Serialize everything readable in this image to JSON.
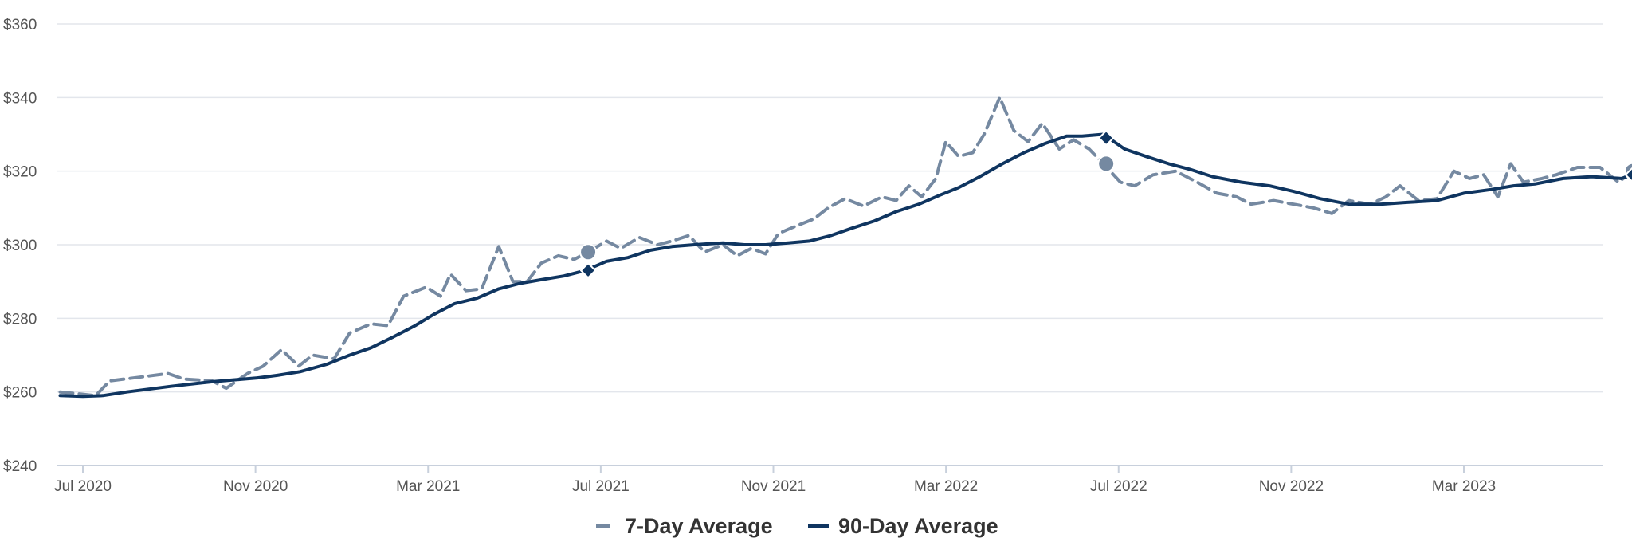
{
  "chart_data": {
    "type": "line",
    "ylim": [
      240,
      360
    ],
    "y_ticks": [
      "$240",
      "$260",
      "$280",
      "$300",
      "$320",
      "$340",
      "$360"
    ],
    "x_ticks": [
      "Jul 2020",
      "Nov 2020",
      "Mar 2021",
      "Jul 2021",
      "Nov 2021",
      "Mar 2022",
      "Jul 2022",
      "Nov 2022",
      "Mar 2023"
    ],
    "grid": "horizontal",
    "legend_position": "bottom-center",
    "colors": {
      "seven_day": "#7589a1",
      "ninety_day": "#0f3560",
      "grid": "#e3e6ec",
      "axis": "#c8d0dc"
    },
    "series": [
      {
        "name": "7-Day Average",
        "style": "dashed",
        "points": [
          [
            "2020-06-15",
            260
          ],
          [
            "2020-07-10",
            259
          ],
          [
            "2020-07-20",
            263
          ],
          [
            "2020-08-10",
            264
          ],
          [
            "2020-08-30",
            265
          ],
          [
            "2020-09-10",
            263.5
          ],
          [
            "2020-09-30",
            263
          ],
          [
            "2020-10-10",
            261
          ],
          [
            "2020-10-25",
            265
          ],
          [
            "2020-11-05",
            267
          ],
          [
            "2020-11-18",
            271.5
          ],
          [
            "2020-11-30",
            267
          ],
          [
            "2020-12-10",
            270
          ],
          [
            "2020-12-25",
            269
          ],
          [
            "2021-01-05",
            276
          ],
          [
            "2021-01-20",
            278.5
          ],
          [
            "2021-02-01",
            278
          ],
          [
            "2021-02-12",
            286
          ],
          [
            "2021-02-28",
            288.5
          ],
          [
            "2021-03-10",
            286
          ],
          [
            "2021-03-17",
            292
          ],
          [
            "2021-03-28",
            287.5
          ],
          [
            "2021-04-08",
            288
          ],
          [
            "2021-04-20",
            299.5
          ],
          [
            "2021-04-30",
            290
          ],
          [
            "2021-05-10",
            290
          ],
          [
            "2021-05-20",
            295
          ],
          [
            "2021-06-01",
            297
          ],
          [
            "2021-06-12",
            296
          ],
          [
            "2021-06-22",
            298
          ],
          [
            "2021-07-05",
            301
          ],
          [
            "2021-07-15",
            299
          ],
          [
            "2021-07-28",
            302
          ],
          [
            "2021-08-10",
            300
          ],
          [
            "2021-08-20",
            301
          ],
          [
            "2021-09-01",
            302.5
          ],
          [
            "2021-09-12",
            298
          ],
          [
            "2021-09-25",
            300
          ],
          [
            "2021-10-05",
            297
          ],
          [
            "2021-10-15",
            299
          ],
          [
            "2021-10-25",
            297.5
          ],
          [
            "2021-11-03",
            303
          ],
          [
            "2021-11-15",
            305
          ],
          [
            "2021-11-28",
            307
          ],
          [
            "2021-12-08",
            310
          ],
          [
            "2021-12-20",
            312.5
          ],
          [
            "2022-01-02",
            310.5
          ],
          [
            "2022-01-15",
            313
          ],
          [
            "2022-01-25",
            312
          ],
          [
            "2022-02-03",
            316
          ],
          [
            "2022-02-12",
            313
          ],
          [
            "2022-02-22",
            318
          ],
          [
            "2022-03-01",
            328
          ],
          [
            "2022-03-10",
            324
          ],
          [
            "2022-03-20",
            325
          ],
          [
            "2022-03-28",
            330
          ],
          [
            "2022-04-08",
            340
          ],
          [
            "2022-04-18",
            331
          ],
          [
            "2022-04-28",
            328
          ],
          [
            "2022-05-08",
            333
          ],
          [
            "2022-05-20",
            326
          ],
          [
            "2022-05-30",
            328.5
          ],
          [
            "2022-06-10",
            326
          ],
          [
            "2022-06-20",
            322
          ],
          [
            "2022-07-02",
            317
          ],
          [
            "2022-07-12",
            316
          ],
          [
            "2022-07-25",
            319
          ],
          [
            "2022-08-10",
            320
          ],
          [
            "2022-08-25",
            317
          ],
          [
            "2022-09-08",
            314
          ],
          [
            "2022-09-22",
            313
          ],
          [
            "2022-10-02",
            311
          ],
          [
            "2022-10-18",
            312
          ],
          [
            "2022-11-01",
            311
          ],
          [
            "2022-11-15",
            310
          ],
          [
            "2022-11-28",
            308.5
          ],
          [
            "2022-12-10",
            312
          ],
          [
            "2022-12-25",
            311
          ],
          [
            "2023-01-05",
            313
          ],
          [
            "2023-01-15",
            316
          ],
          [
            "2023-01-28",
            312
          ],
          [
            "2023-02-10",
            312.5
          ],
          [
            "2023-02-22",
            320
          ],
          [
            "2023-03-05",
            318
          ],
          [
            "2023-03-15",
            319
          ],
          [
            "2023-03-25",
            313
          ],
          [
            "2023-04-03",
            322
          ],
          [
            "2023-04-12",
            317
          ],
          [
            "2023-04-25",
            318
          ],
          [
            "2023-05-05",
            319
          ],
          [
            "2023-05-20",
            321
          ],
          [
            "2023-06-05",
            321
          ],
          [
            "2023-06-18",
            317
          ],
          [
            "2023-06-28",
            320
          ]
        ]
      },
      {
        "name": "90-Day Average",
        "style": "solid",
        "points": [
          [
            "2020-06-15",
            259
          ],
          [
            "2020-07-01",
            258.8
          ],
          [
            "2020-07-15",
            259
          ],
          [
            "2020-08-01",
            260
          ],
          [
            "2020-09-01",
            261.5
          ],
          [
            "2020-10-01",
            262.8
          ],
          [
            "2020-11-01",
            263.8
          ],
          [
            "2020-11-15",
            264.5
          ],
          [
            "2020-12-01",
            265.5
          ],
          [
            "2020-12-20",
            267.5
          ],
          [
            "2021-01-05",
            270
          ],
          [
            "2021-01-20",
            272
          ],
          [
            "2021-02-05",
            275
          ],
          [
            "2021-02-20",
            278
          ],
          [
            "2021-03-05",
            281
          ],
          [
            "2021-03-20",
            284
          ],
          [
            "2021-04-05",
            285.5
          ],
          [
            "2021-04-20",
            288
          ],
          [
            "2021-05-05",
            289.5
          ],
          [
            "2021-05-20",
            290.5
          ],
          [
            "2021-06-05",
            291.5
          ],
          [
            "2021-06-20",
            293
          ],
          [
            "2021-07-05",
            295.5
          ],
          [
            "2021-07-20",
            296.5
          ],
          [
            "2021-08-05",
            298.5
          ],
          [
            "2021-08-20",
            299.5
          ],
          [
            "2021-09-05",
            300
          ],
          [
            "2021-09-25",
            300.5
          ],
          [
            "2021-10-10",
            300
          ],
          [
            "2021-10-25",
            300
          ],
          [
            "2021-11-10",
            300.5
          ],
          [
            "2021-11-25",
            301
          ],
          [
            "2021-12-10",
            302.5
          ],
          [
            "2021-12-25",
            304.5
          ],
          [
            "2022-01-10",
            306.5
          ],
          [
            "2022-01-25",
            309
          ],
          [
            "2022-02-10",
            311
          ],
          [
            "2022-02-25",
            313.5
          ],
          [
            "2022-03-10",
            315.5
          ],
          [
            "2022-03-25",
            318.5
          ],
          [
            "2022-04-10",
            322
          ],
          [
            "2022-04-25",
            325
          ],
          [
            "2022-05-10",
            327.5
          ],
          [
            "2022-05-25",
            329.5
          ],
          [
            "2022-06-05",
            329.5
          ],
          [
            "2022-06-20",
            330
          ],
          [
            "2022-07-05",
            326
          ],
          [
            "2022-07-20",
            324
          ],
          [
            "2022-08-05",
            322
          ],
          [
            "2022-08-20",
            320.5
          ],
          [
            "2022-09-05",
            318.5
          ],
          [
            "2022-09-25",
            317
          ],
          [
            "2022-10-15",
            316
          ],
          [
            "2022-11-01",
            314.5
          ],
          [
            "2022-11-20",
            312.5
          ],
          [
            "2022-12-10",
            311
          ],
          [
            "2023-01-01",
            311
          ],
          [
            "2023-01-20",
            311.5
          ],
          [
            "2023-02-10",
            312
          ],
          [
            "2023-03-01",
            314
          ],
          [
            "2023-03-20",
            315
          ],
          [
            "2023-04-05",
            316
          ],
          [
            "2023-04-20",
            316.5
          ],
          [
            "2023-05-10",
            318
          ],
          [
            "2023-05-30",
            318.5
          ],
          [
            "2023-06-20",
            318
          ],
          [
            "2023-06-28",
            319
          ]
        ]
      }
    ],
    "markers": [
      {
        "series": "7-Day Average",
        "shape": "circle",
        "date": "2021-06-22",
        "value": 298
      },
      {
        "series": "90-Day Average",
        "shape": "diamond",
        "date": "2021-06-22",
        "value": 293
      },
      {
        "series": "7-Day Average",
        "shape": "circle",
        "date": "2022-06-22",
        "value": 322
      },
      {
        "series": "90-Day Average",
        "shape": "diamond",
        "date": "2022-06-22",
        "value": 329
      },
      {
        "series": "7-Day Average",
        "shape": "circle",
        "date": "2023-06-28",
        "value": 320
      },
      {
        "series": "90-Day Average",
        "shape": "diamond",
        "date": "2023-06-28",
        "value": 319
      }
    ]
  }
}
